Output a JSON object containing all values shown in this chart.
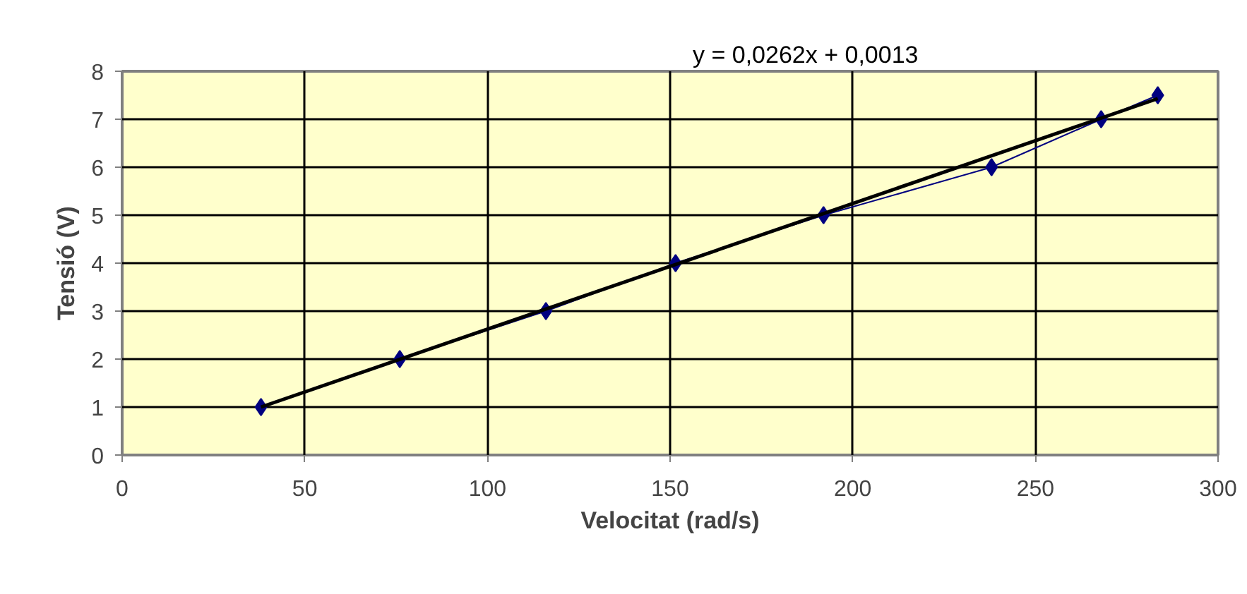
{
  "chart_data": {
    "type": "line",
    "xlabel": "Velocitat (rad/s)",
    "ylabel": "Tensió (V)",
    "annotations": [
      "y = 0,0262x + 0,0013"
    ],
    "xlim": [
      0,
      300
    ],
    "xticks": [
      0,
      50,
      100,
      150,
      200,
      250,
      300
    ],
    "ylim": [
      0,
      8
    ],
    "yticks": [
      0,
      1,
      2,
      3,
      4,
      5,
      6,
      7,
      8
    ],
    "grid": true,
    "series": [
      {
        "marker": "diamond",
        "color": "#000080",
        "x": [
          38,
          76,
          116,
          151.5,
          192,
          238,
          268,
          283.5
        ],
        "values": [
          1,
          2,
          3,
          4,
          5,
          6,
          7,
          7.5
        ]
      },
      {
        "marker": "none",
        "color": "#000000",
        "x": [
          38,
          283.5
        ],
        "values": [
          1.0,
          7.43
        ]
      }
    ]
  }
}
